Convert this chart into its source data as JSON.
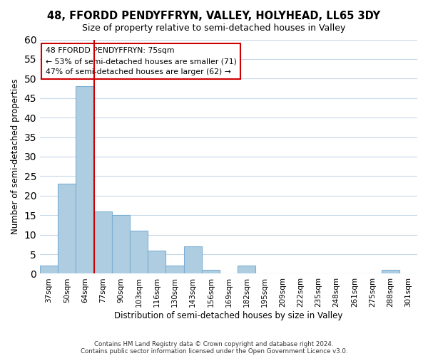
{
  "title": "48, FFORDD PENDYFFRYN, VALLEY, HOLYHEAD, LL65 3DY",
  "subtitle": "Size of property relative to semi-detached houses in Valley",
  "xlabel": "Distribution of semi-detached houses by size in Valley",
  "ylabel": "Number of semi-detached properties",
  "bar_color": "#aecde0",
  "bar_edge_color": "#7bafd4",
  "bin_labels": [
    "37sqm",
    "50sqm",
    "64sqm",
    "77sqm",
    "90sqm",
    "103sqm",
    "116sqm",
    "130sqm",
    "143sqm",
    "156sqm",
    "169sqm",
    "182sqm",
    "195sqm",
    "209sqm",
    "222sqm",
    "235sqm",
    "248sqm",
    "261sqm",
    "275sqm",
    "288sqm",
    "301sqm"
  ],
  "bar_heights": [
    2,
    23,
    48,
    16,
    15,
    11,
    6,
    2,
    7,
    1,
    0,
    2,
    0,
    0,
    0,
    0,
    0,
    0,
    0,
    1,
    0
  ],
  "property_line_x": 3,
  "property_line_color": "#cc0000",
  "ylim": [
    0,
    60
  ],
  "yticks": [
    0,
    5,
    10,
    15,
    20,
    25,
    30,
    35,
    40,
    45,
    50,
    55,
    60
  ],
  "annotation_title": "48 FFORDD PENDYFFRYN: 75sqm",
  "annotation_line1": "← 53% of semi-detached houses are smaller (71)",
  "annotation_line2": "47% of semi-detached houses are larger (62) →",
  "annotation_box_color": "#ffffff",
  "annotation_box_edge": "#cc0000",
  "footer_line1": "Contains HM Land Registry data © Crown copyright and database right 2024.",
  "footer_line2": "Contains public sector information licensed under the Open Government Licence v3.0.",
  "background_color": "#ffffff",
  "grid_color": "#c8d8e8"
}
